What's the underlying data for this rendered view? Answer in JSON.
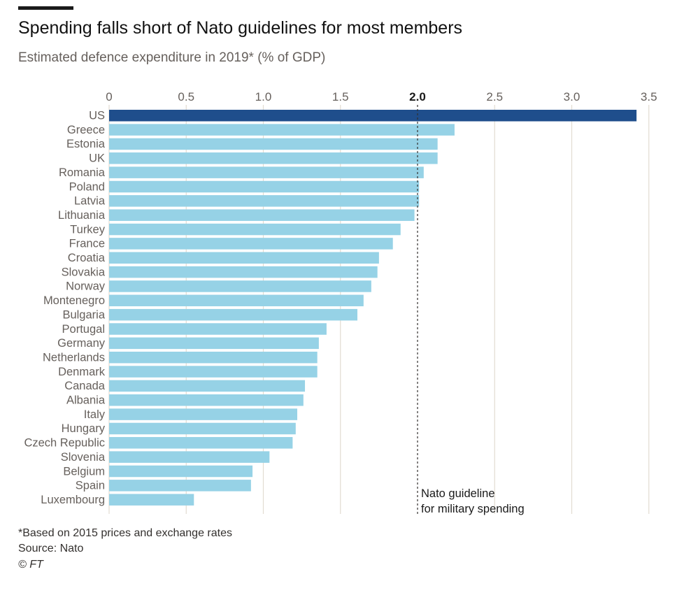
{
  "header": {
    "title": "Spending falls short of Nato guidelines for most members",
    "subtitle": "Estimated defence expenditure in 2019* (% of GDP)"
  },
  "footer": {
    "note": "*Based on 2015 prices and exchange rates",
    "source": "Source: Nato",
    "copyright": "© FT"
  },
  "colors": {
    "highlight": "#1f4e8c",
    "bar": "#96d2e6",
    "grid": "#e2dcd2",
    "text": "#66605c"
  },
  "chart_data": {
    "type": "bar",
    "orientation": "horizontal",
    "xlim": [
      0,
      3.5
    ],
    "ticks": [
      {
        "value": 0,
        "label": "0",
        "bold": false
      },
      {
        "value": 0.5,
        "label": "0.5",
        "bold": false
      },
      {
        "value": 1.0,
        "label": "1.0",
        "bold": false
      },
      {
        "value": 1.5,
        "label": "1.5",
        "bold": false
      },
      {
        "value": 2.0,
        "label": "2.0",
        "bold": true
      },
      {
        "value": 2.5,
        "label": "2.5",
        "bold": false
      },
      {
        "value": 3.0,
        "label": "3.0",
        "bold": false
      },
      {
        "value": 3.5,
        "label": "3.5",
        "bold": false
      }
    ],
    "grid": true,
    "highlight": "US",
    "categories": [
      "US",
      "Greece",
      "Estonia",
      "UK",
      "Romania",
      "Poland",
      "Latvia",
      "Lithuania",
      "Turkey",
      "France",
      "Croatia",
      "Slovakia",
      "Norway",
      "Montenegro",
      "Bulgaria",
      "Portugal",
      "Germany",
      "Netherlands",
      "Denmark",
      "Canada",
      "Albania",
      "Italy",
      "Hungary",
      "Czech Republic",
      "Slovenia",
      "Belgium",
      "Spain",
      "Luxembourg"
    ],
    "values": [
      3.42,
      2.24,
      2.13,
      2.13,
      2.04,
      2.01,
      2.01,
      1.98,
      1.89,
      1.84,
      1.75,
      1.74,
      1.7,
      1.65,
      1.61,
      1.41,
      1.36,
      1.35,
      1.35,
      1.27,
      1.26,
      1.22,
      1.21,
      1.19,
      1.04,
      0.93,
      0.92,
      0.55
    ],
    "reference_line": {
      "value": 2.0,
      "label_lines": [
        "Nato guideline",
        "for military spending"
      ]
    }
  }
}
